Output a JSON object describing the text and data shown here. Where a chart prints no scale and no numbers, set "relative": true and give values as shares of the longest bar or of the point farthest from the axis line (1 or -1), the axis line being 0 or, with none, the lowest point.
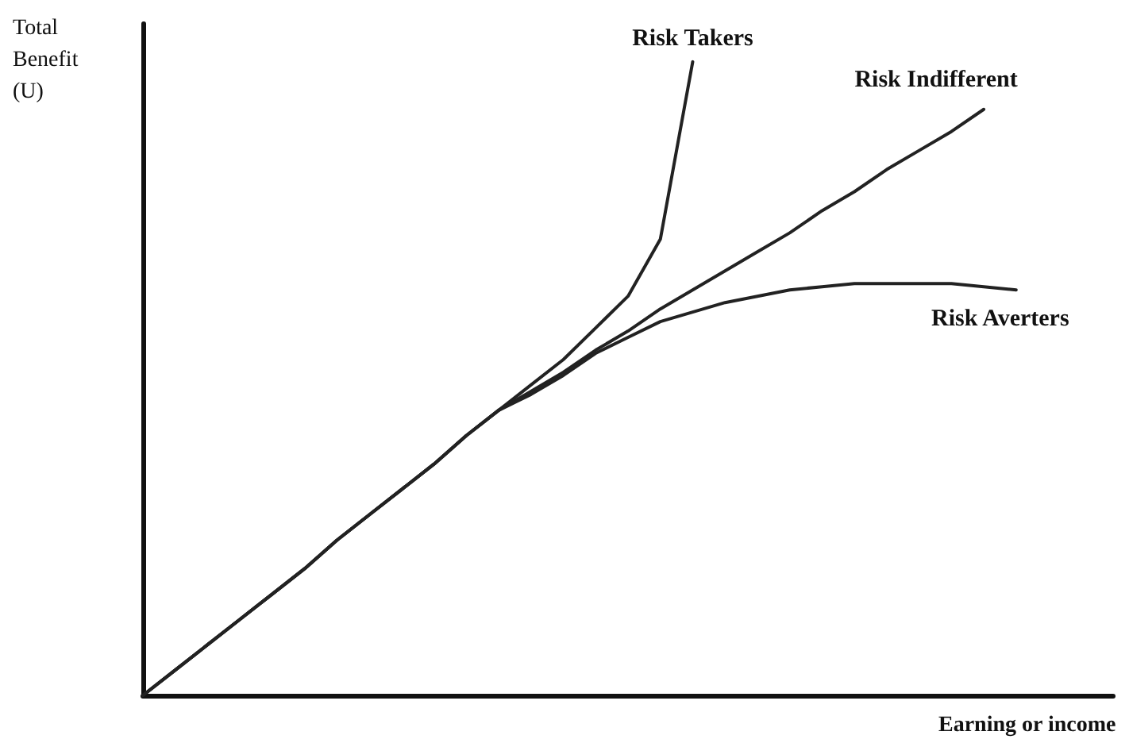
{
  "chart_data": {
    "type": "line",
    "relative": true,
    "xlabel": "Earning or income",
    "ylabel": "Total Benefit (U)",
    "marker": "none",
    "line_style": "solid",
    "categories": [
      null,
      null,
      null,
      null,
      null,
      null,
      null,
      null,
      null,
      null,
      null,
      null,
      null,
      null,
      null,
      null,
      null,
      null,
      null,
      null,
      null,
      null,
      null,
      null,
      null,
      null,
      null,
      null,
      null,
      null,
      null
    ],
    "series": [
      {
        "name": "Risk Takers",
        "color": "#222222",
        "values": [
          0,
          0.04,
          0.08,
          0.12,
          0.16,
          0.2,
          0.245,
          0.285,
          0.325,
          0.365,
          0.41,
          0.45,
          0.49,
          0.53,
          0.58,
          0.63,
          0.72,
          1.0,
          null,
          null,
          null,
          null,
          null,
          null,
          null,
          null,
          null,
          null,
          null,
          null,
          null
        ]
      },
      {
        "name": "Risk Indifferent",
        "color": "#222222",
        "values": [
          0,
          0.04,
          0.08,
          0.12,
          0.16,
          0.2,
          0.245,
          0.285,
          0.325,
          0.365,
          0.41,
          0.45,
          0.48,
          0.51,
          0.545,
          0.575,
          0.61,
          0.64,
          0.67,
          0.7,
          0.73,
          0.765,
          0.795,
          0.83,
          0.86,
          0.89,
          0.925,
          null,
          null,
          null,
          null
        ]
      },
      {
        "name": "Risk Averters",
        "color": "#222222",
        "values": [
          0,
          0.04,
          0.08,
          0.12,
          0.16,
          0.2,
          0.245,
          0.285,
          0.325,
          0.365,
          0.41,
          0.45,
          0.475,
          0.505,
          0.54,
          0.565,
          0.59,
          0.605,
          0.62,
          0.63,
          0.64,
          0.645,
          0.65,
          0.65,
          0.65,
          0.65,
          0.645,
          0.64,
          null,
          null,
          null
        ]
      }
    ]
  }
}
